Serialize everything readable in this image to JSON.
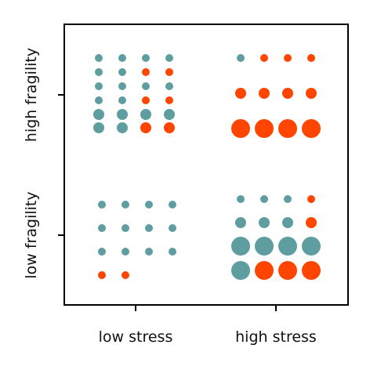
{
  "chart_data": {
    "type": "scatter",
    "title": "",
    "xlabel": "",
    "ylabel": "",
    "x_tick_labels": [
      "low stress",
      "high stress"
    ],
    "y_tick_labels": [
      "low fragility",
      "high fragility"
    ],
    "grid": false,
    "legend": "none",
    "colors": {
      "teal": "#5f9ea0",
      "orange": "#ff4500",
      "axis": "#000000"
    },
    "panels": [
      {
        "stress": "low stress",
        "fragility": "high fragility",
        "rows": [
          {
            "size": "small",
            "dots": [
              "teal",
              "teal",
              "teal",
              "teal"
            ]
          },
          {
            "size": "small",
            "dots": [
              "teal",
              "teal",
              "orange",
              "orange"
            ]
          },
          {
            "size": "small",
            "dots": [
              "teal",
              "teal",
              "teal",
              "teal"
            ]
          },
          {
            "size": "small",
            "dots": [
              "teal",
              "teal",
              "orange",
              "orange"
            ]
          },
          {
            "size": "medium",
            "dots": [
              "teal",
              "teal",
              "teal",
              "teal"
            ]
          },
          {
            "size": "medium",
            "dots": [
              "teal",
              "teal",
              "orange",
              "orange"
            ]
          }
        ]
      },
      {
        "stress": "high stress",
        "fragility": "high fragility",
        "rows": [
          {
            "size": "small",
            "dots": [
              "teal",
              "orange",
              "orange",
              "orange"
            ]
          },
          {
            "size": "medium",
            "dots": [
              "orange",
              "orange",
              "orange",
              "orange"
            ]
          },
          {
            "size": "large",
            "dots": [
              "orange",
              "orange",
              "orange",
              "orange"
            ]
          }
        ]
      },
      {
        "stress": "low stress",
        "fragility": "low fragility",
        "rows": [
          {
            "size": "small",
            "dots": [
              "teal",
              "teal",
              "teal",
              "teal"
            ]
          },
          {
            "size": "small",
            "dots": [
              "teal",
              "teal",
              "teal",
              "teal"
            ]
          },
          {
            "size": "small",
            "dots": [
              "teal",
              "teal",
              "teal",
              "teal"
            ]
          },
          {
            "size": "small",
            "dots": [
              "orange",
              "orange"
            ]
          }
        ]
      },
      {
        "stress": "high stress",
        "fragility": "low fragility",
        "rows": [
          {
            "size": "small",
            "dots": [
              "teal",
              "teal",
              "teal",
              "orange"
            ]
          },
          {
            "size": "medium",
            "dots": [
              "teal",
              "teal",
              "teal",
              "orange"
            ]
          },
          {
            "size": "large",
            "dots": [
              "teal",
              "teal",
              "teal",
              "teal"
            ]
          },
          {
            "size": "large",
            "dots": [
              "teal",
              "orange",
              "orange",
              "orange"
            ]
          }
        ]
      }
    ]
  }
}
